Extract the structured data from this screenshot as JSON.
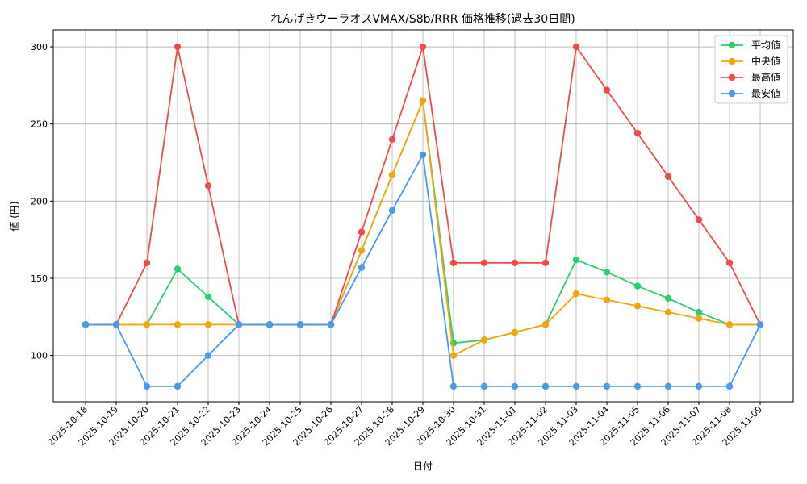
{
  "chart_data": {
    "type": "line",
    "title": "れんげきウーラオスVMAX/S8b/RRR 価格推移(過去30日間)",
    "xlabel": "日付",
    "ylabel": "値 (円)",
    "x": [
      "2025-10-18",
      "2025-10-19",
      "2025-10-20",
      "2025-10-21",
      "2025-10-22",
      "2025-10-23",
      "2025-10-24",
      "2025-10-25",
      "2025-10-26",
      "2025-10-27",
      "2025-10-28",
      "2025-10-29",
      "2025-10-30",
      "2025-10-31",
      "2025-11-01",
      "2025-11-02",
      "2025-11-03",
      "2025-11-04",
      "2025-11-05",
      "2025-11-06",
      "2025-11-07",
      "2025-11-08",
      "2025-11-09"
    ],
    "ylim": [
      70,
      311
    ],
    "yticks": [
      100,
      150,
      200,
      250,
      300
    ],
    "grid": true,
    "legend_position": "top-right",
    "series": [
      {
        "name": "平均値",
        "color": "#2ecc71",
        "values": [
          120,
          120,
          120,
          156,
          138,
          120,
          120,
          120,
          120,
          168,
          217,
          265,
          108,
          110,
          115,
          120,
          162,
          154,
          145,
          137,
          128,
          120,
          120
        ]
      },
      {
        "name": "中央値",
        "color": "#f5a50a",
        "values": [
          120,
          120,
          120,
          120,
          120,
          120,
          120,
          120,
          120,
          168,
          217,
          265,
          100,
          110,
          115,
          120,
          140,
          136,
          132,
          128,
          124,
          120,
          120
        ]
      },
      {
        "name": "最高値",
        "color": "#f04a4a",
        "values": [
          120,
          120,
          160,
          300,
          210,
          120,
          120,
          120,
          120,
          180,
          240,
          300,
          160,
          160,
          160,
          160,
          300,
          272,
          244,
          216,
          188,
          160,
          120
        ]
      },
      {
        "name": "最安値",
        "color": "#4a98f0",
        "values": [
          120,
          120,
          80,
          80,
          100,
          120,
          120,
          120,
          120,
          157,
          194,
          230,
          80,
          80,
          80,
          80,
          80,
          80,
          80,
          80,
          80,
          80,
          120
        ]
      }
    ]
  }
}
